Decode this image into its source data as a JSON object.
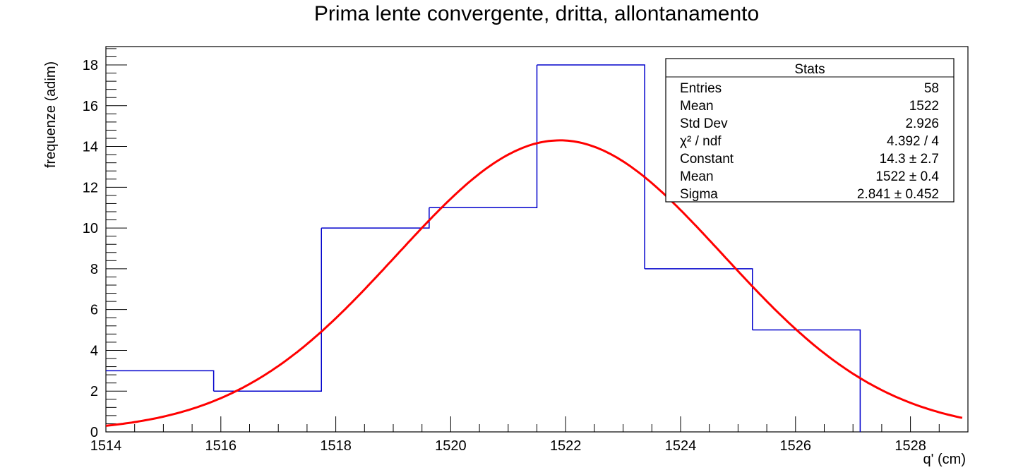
{
  "chart_data": {
    "type": "bar",
    "title": "Prima lente convergente, dritta, allontanamento",
    "xlabel": "q' (cm)",
    "ylabel": "frequenze (adim)",
    "xlim": [
      1514,
      1529
    ],
    "ylim": [
      0,
      18.9
    ],
    "x_ticks": [
      "1514",
      "1516",
      "1518",
      "1520",
      "1522",
      "1524",
      "1526",
      "1528"
    ],
    "y_ticks": [
      "0",
      "2",
      "4",
      "6",
      "8",
      "10",
      "12",
      "14",
      "16",
      "18"
    ],
    "histogram": {
      "bin_edges": [
        1514,
        1515.875,
        1517.75,
        1519.625,
        1521.5,
        1523.375,
        1525.25,
        1527.125
      ],
      "counts": [
        3,
        2,
        10,
        11,
        18,
        8,
        5
      ],
      "color": "#0000cc"
    },
    "fit": {
      "function": "gaus",
      "constant": 14.3,
      "mean": 1521.9,
      "sigma": 2.841,
      "color": "#ff0000"
    },
    "stats": {
      "title": "Stats",
      "rows": [
        {
          "label": "Entries",
          "value": "58"
        },
        {
          "label": "Mean",
          "value": "1522"
        },
        {
          "label": "Std Dev",
          "value": "2.926"
        },
        {
          "label": "χ² / ndf",
          "value": "4.392 / 4"
        },
        {
          "label": "Constant",
          "value": "14.3 ± 2.7"
        },
        {
          "label": "Mean",
          "value": "1522 ± 0.4"
        },
        {
          "label": "Sigma",
          "value": "2.841 ± 0.452"
        }
      ]
    }
  }
}
